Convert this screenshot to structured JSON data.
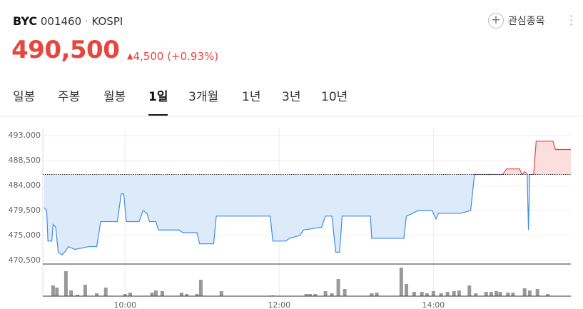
{
  "header": {
    "name": "BYC",
    "code": "001460",
    "separator": "·",
    "market": "KOSPI",
    "price": "490,500",
    "change": "4,500",
    "change_pct": "(+0.93%)",
    "watch": "관심종목"
  },
  "tabs": {
    "items": [
      "일봉",
      "주봉",
      "월봉",
      "1일",
      "3개월",
      "1년",
      "3년",
      "10년"
    ],
    "selected_index": 3
  },
  "chart_data": {
    "type": "line",
    "xlim": [
      536,
      947
    ],
    "xticks": [
      {
        "value": 600,
        "label": "10:00"
      },
      {
        "value": 720,
        "label": "12:00"
      },
      {
        "value": 840,
        "label": "14:00"
      }
    ],
    "ylim": [
      469860,
      494290
    ],
    "yticks": [
      {
        "value": 470500,
        "label": "470,500"
      },
      {
        "value": 475000,
        "label": "475,000"
      },
      {
        "value": 479500,
        "label": "479,500"
      },
      {
        "value": 484000,
        "label": "484,000"
      },
      {
        "value": 488500,
        "label": "488,500"
      },
      {
        "value": 493000,
        "label": "493,000"
      }
    ],
    "grid": true,
    "reference": 486000,
    "series": [
      {
        "color": "#3a8ee6",
        "up_color": "#e8453c",
        "fill_color": "#dceafa",
        "up_fill_color": "#fcdede",
        "x": [
          537,
          539,
          540,
          543,
          544,
          546,
          548,
          551,
          553,
          556,
          561,
          572,
          578,
          581,
          594,
          597,
          599,
          601,
          611,
          614,
          617,
          619,
          624,
          626,
          642,
          645,
          656,
          658,
          669,
          671,
          713,
          715,
          725,
          728,
          736,
          739,
          753,
          756,
          761,
          764,
          767,
          769,
          791,
          792,
          817,
          819,
          824,
          828,
          839,
          842,
          844,
          861,
          869,
          872,
          894,
          897,
          907,
          909,
          911,
          913,
          914,
          915,
          918,
          920,
          933,
          935,
          947
        ],
        "values": [
          480000,
          479500,
          474000,
          474000,
          477000,
          476500,
          472000,
          471500,
          472000,
          473000,
          472500,
          473000,
          473000,
          477500,
          477500,
          482500,
          482500,
          477500,
          477500,
          479500,
          479000,
          477500,
          477500,
          476000,
          476000,
          475500,
          475500,
          473500,
          473500,
          478500,
          478500,
          474000,
          474000,
          474500,
          475000,
          476000,
          476500,
          478500,
          478500,
          472000,
          472000,
          478500,
          478500,
          474500,
          474500,
          478500,
          479000,
          479500,
          479500,
          478000,
          479000,
          479000,
          479500,
          486000,
          486000,
          487000,
          487000,
          486000,
          486500,
          486000,
          476000,
          486000,
          486000,
          492000,
          492000,
          490500,
          490500
        ]
      }
    ],
    "volume": {
      "color": "#999999",
      "ylim": [
        0,
        43
      ],
      "x": [
        544,
        547,
        554,
        558,
        563,
        569,
        578,
        585,
        600,
        604,
        621,
        624,
        629,
        644,
        648,
        656,
        659,
        675,
        715,
        741,
        744,
        748,
        756,
        761,
        766,
        771,
        792,
        796,
        815,
        819,
        825,
        831,
        835,
        840,
        846,
        851,
        856,
        860,
        868,
        873,
        881,
        885,
        889,
        892,
        898,
        902,
        911,
        915,
        921,
        929
      ],
      "values": [
        15,
        12,
        35,
        8,
        2,
        16,
        4,
        12,
        3,
        5,
        5,
        8,
        7,
        5,
        3,
        3,
        23,
        7,
        1,
        3,
        3,
        3,
        7,
        4,
        24,
        10,
        4,
        5,
        40,
        17,
        6,
        6,
        4,
        7,
        4,
        6,
        7,
        8,
        15,
        4,
        6,
        6,
        7,
        6,
        5,
        5,
        11,
        8,
        10,
        3
      ]
    }
  }
}
